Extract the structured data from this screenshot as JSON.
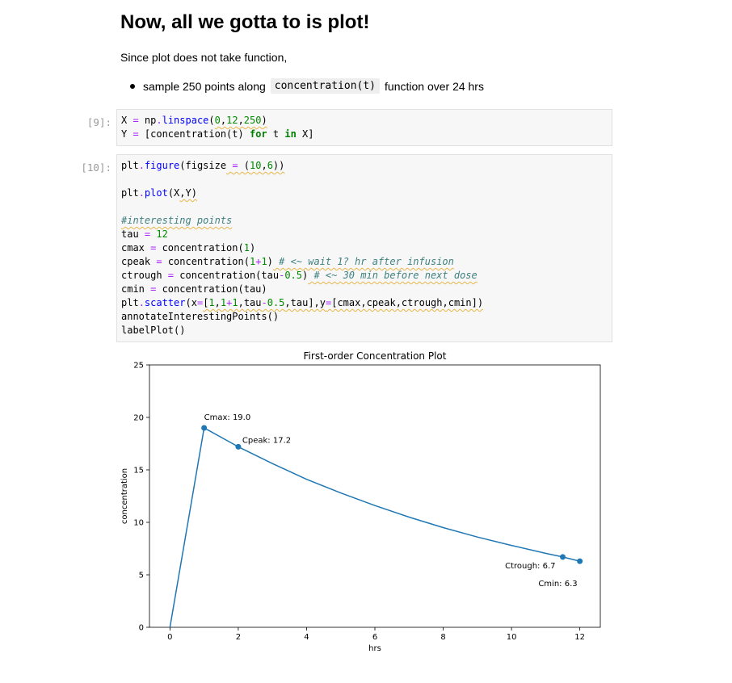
{
  "markdown": {
    "heading": "Now, all we gotta to is plot!",
    "paragraph": "Since plot does not take function,",
    "bullet_pre": "sample 250 points along",
    "bullet_code": "concentration(t)",
    "bullet_post": "function over 24 hrs"
  },
  "cells": {
    "cell9": {
      "prompt": "[9]:"
    },
    "cell10": {
      "prompt": "[10]:"
    }
  },
  "chart_data": {
    "type": "line",
    "title": "First-order Concentration Plot",
    "xlabel": "hrs",
    "ylabel": "concentration",
    "xlim": [
      -0.6,
      12.6
    ],
    "ylim": [
      0,
      25
    ],
    "xticks": [
      0,
      2,
      4,
      6,
      8,
      10,
      12
    ],
    "yticks": [
      0,
      5,
      10,
      15,
      20,
      25
    ],
    "grid": false,
    "line_color": "#1f77b4",
    "series": [
      {
        "x": [
          0,
          1,
          2,
          3,
          4,
          5,
          6,
          7,
          8,
          9,
          10,
          11,
          11.5,
          12
        ],
        "y": [
          0,
          19.0,
          17.2,
          15.6,
          14.1,
          12.8,
          11.6,
          10.5,
          9.5,
          8.6,
          7.8,
          7.05,
          6.7,
          6.3
        ]
      }
    ],
    "points": [
      {
        "x": 1,
        "y": 19.0,
        "label": "Cmax: 19.0"
      },
      {
        "x": 2,
        "y": 17.2,
        "label": "Cpeak: 17.2"
      },
      {
        "x": 11.5,
        "y": 6.7,
        "label": "Ctrough: 6.7"
      },
      {
        "x": 12,
        "y": 6.3,
        "label": "Cmin: 6.3"
      }
    ]
  }
}
